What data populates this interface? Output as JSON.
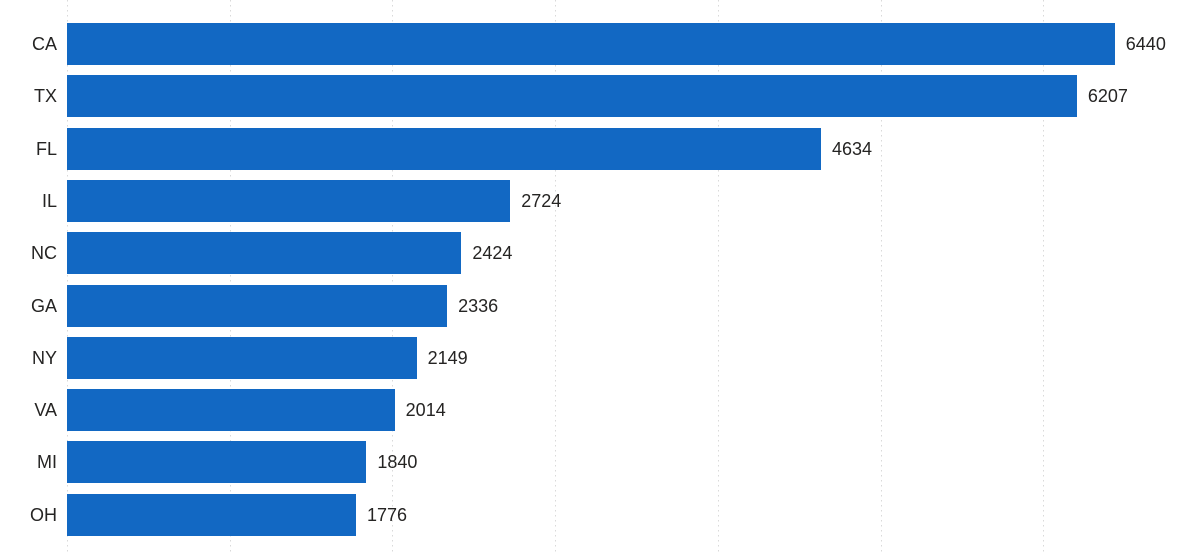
{
  "chart_data": {
    "type": "bar",
    "orientation": "horizontal",
    "categories": [
      "CA",
      "TX",
      "FL",
      "IL",
      "NC",
      "GA",
      "NY",
      "VA",
      "MI",
      "OH"
    ],
    "values": [
      6440,
      6207,
      4634,
      2724,
      2424,
      2336,
      2149,
      2014,
      1840,
      1776
    ],
    "data_labels": [
      "6440",
      "6207",
      "4634",
      "2724",
      "2424",
      "2336",
      "2149",
      "2014",
      "1840",
      "1776"
    ],
    "title": "",
    "xlabel": "",
    "ylabel": "",
    "xlim": [
      0,
      7000
    ],
    "grid": {
      "visible": true,
      "axis": "x",
      "step": 1000,
      "max_gridline_value": 6000,
      "style": "dotted"
    },
    "legend": "none",
    "colors": {
      "bar": "#1268c3",
      "label_text": "#252423",
      "gridline": "#d9d9d9",
      "background": "#ffffff"
    }
  }
}
